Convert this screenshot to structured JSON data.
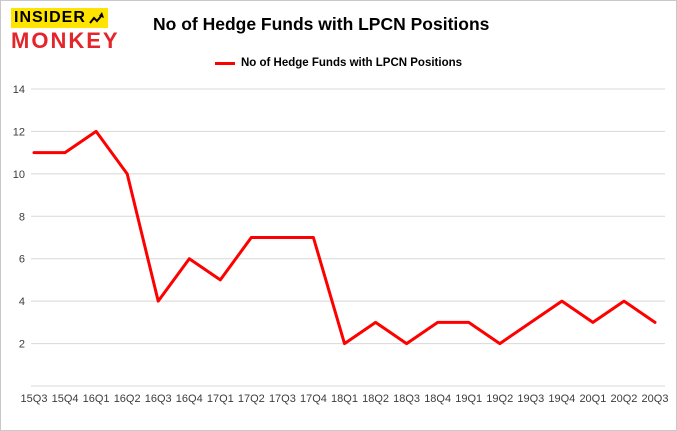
{
  "logo": {
    "line1": "INSIDER",
    "line2": "MONKEY"
  },
  "header": {
    "title": "No of Hedge Funds with LPCN Positions"
  },
  "legend": {
    "label": "No of Hedge Funds with LPCN Positions"
  },
  "colors": {
    "line": "#fe0000",
    "logo_red": "#e3262c",
    "logo_yellow": "#ffe400",
    "grid": "#d8d8d8",
    "axis_text": "#3c3c3c"
  },
  "chart_data": {
    "type": "line",
    "title": "No of Hedge Funds with LPCN Positions",
    "series_name": "No of Hedge Funds with LPCN Positions",
    "categories": [
      "15Q3",
      "15Q4",
      "16Q1",
      "16Q2",
      "16Q3",
      "16Q4",
      "17Q1",
      "17Q2",
      "17Q3",
      "17Q4",
      "18Q1",
      "18Q2",
      "18Q3",
      "18Q4",
      "19Q1",
      "19Q2",
      "19Q3",
      "19Q4",
      "20Q1",
      "20Q2",
      "20Q3"
    ],
    "values": [
      11,
      11,
      12,
      10,
      4,
      6,
      5,
      7,
      7,
      7,
      2,
      3,
      2,
      3,
      3,
      2,
      3,
      4,
      3,
      4,
      3
    ],
    "xlabel": "",
    "ylabel": "",
    "ylim": [
      0,
      14
    ],
    "yticks": [
      2,
      4,
      6,
      8,
      10,
      12,
      14
    ],
    "grid": true,
    "legend_position": "top-center"
  }
}
